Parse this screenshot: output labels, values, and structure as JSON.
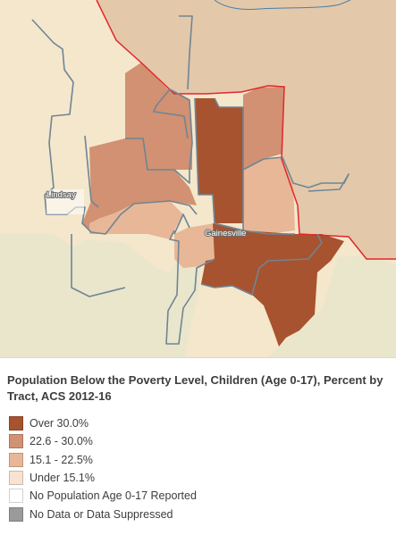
{
  "map": {
    "place_labels": {
      "lindsay": "Lindsay",
      "gainesville": "Gainesville"
    },
    "colors": {
      "background_land": "#f4e7cc",
      "lowland_area": "#eae6cc",
      "adjacent_county": "#e4c8aa",
      "county_border": "#e3262a",
      "tract_outline": "#6f8595",
      "class_over_30": "#a7532f",
      "class_22_30": "#d19172",
      "class_15_22": "#e8b797",
      "class_under_15": "#f8ddc8"
    }
  },
  "legend": {
    "title": "Population Below the Poverty Level, Children (Age 0-17), Percent by Tract, ACS 2012-16",
    "items": [
      {
        "label": "Over 30.0%",
        "color": "#a7532f"
      },
      {
        "label": "22.6 - 30.0%",
        "color": "#d19172"
      },
      {
        "label": "15.1 - 22.5%",
        "color": "#e8b797"
      },
      {
        "label": "Under 15.1%",
        "color": "#f8e3d2"
      },
      {
        "label": "No Population Age 0-17 Reported",
        "color": "#ffffff"
      },
      {
        "label": "No Data or Data Suppressed",
        "color": "#9a9a9a"
      }
    ]
  }
}
